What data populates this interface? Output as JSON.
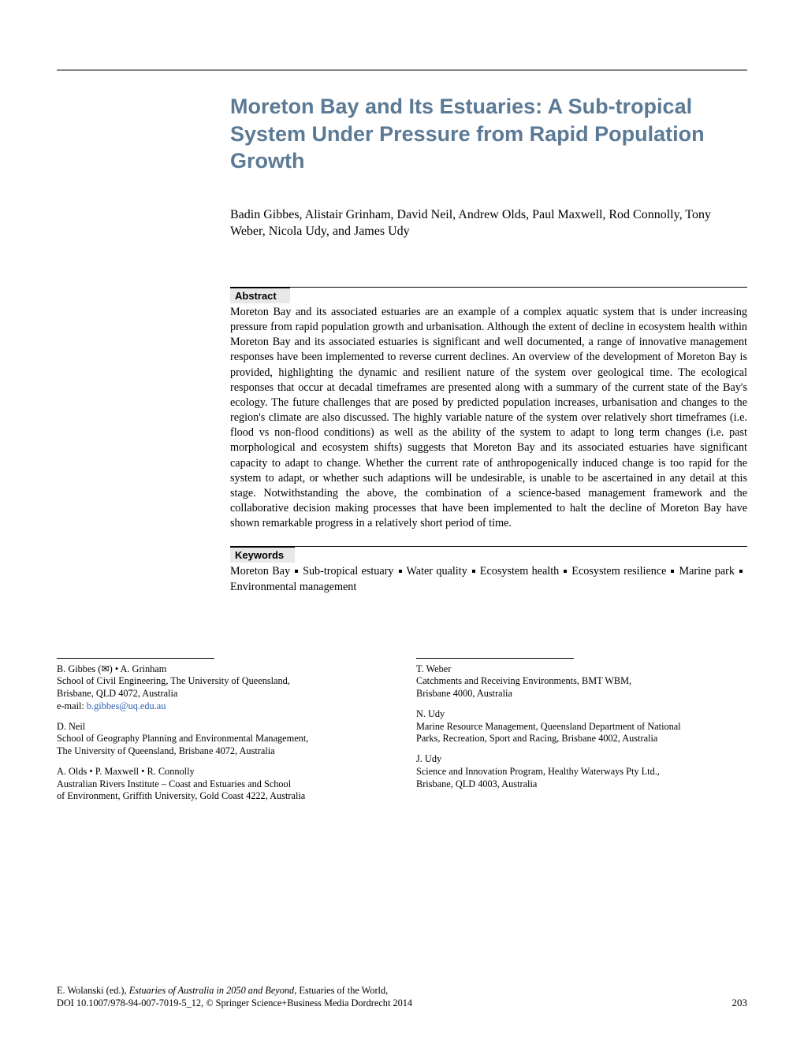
{
  "title": "Moreton Bay and Its Estuaries: A Sub-tropical System Under Pressure from Rapid Population Growth",
  "title_color": "#5b7a95",
  "authors_line": "Badin Gibbes, Alistair Grinham, David Neil, Andrew Olds, Paul Maxwell, Rod Connolly, Tony Weber, Nicola Udy, and James Udy",
  "abstract_label": "Abstract",
  "abstract_body": "Moreton Bay and its associated estuaries are an example of a complex aquatic system that is under increasing pressure from rapid population growth and urbanisation. Although the extent of decline in ecosystem health within Moreton Bay and its associated estuaries is significant and well documented, a range of innovative management responses have been implemented to reverse current declines. An overview of the development of Moreton Bay is provided, highlighting the dynamic and resilient nature of the system over geological time. The ecological responses that occur at decadal timeframes are presented along with a summary of the current state of the Bay's ecology. The future challenges that are posed by predicted population increases, urbanisation and changes to the region's climate are also discussed. The highly variable nature of the system over relatively short timeframes (i.e. flood vs non-flood conditions) as well as the ability of the system to adapt to long term changes (i.e. past morphological and ecosystem shifts) suggests that Moreton Bay and its associated estuaries have significant capacity to adapt to change. Whether the current rate of anthropogenically induced change is too rapid for the system to adapt, or whether such adaptions will be undesirable, is unable to be ascertained in any detail at this stage. Notwithstanding the above, the combination of a science-based management framework and the collaborative decision making processes that have been implemented to halt the decline of Moreton Bay have shown remarkable progress in a relatively short period of time.",
  "keywords_label": "Keywords",
  "keywords": [
    "Moreton Bay",
    "Sub-tropical estuary",
    "Water quality",
    "Ecosystem health",
    "Ecosystem resilience",
    "Marine park",
    "Environmental management"
  ],
  "affiliations": {
    "left": [
      {
        "names_html": "B. Gibbes (✉) • A. Grinham",
        "lines": [
          "School of Civil Engineering, The University of Queensland,",
          "Brisbane, QLD 4072, Australia"
        ],
        "email_label": "e-mail: ",
        "email": "b.gibbes@uq.edu.au"
      },
      {
        "names_html": "D. Neil",
        "lines": [
          "School of Geography Planning and Environmental Management,",
          "The University of Queensland, Brisbane 4072, Australia"
        ]
      },
      {
        "names_html": "A. Olds • P. Maxwell • R. Connolly",
        "lines": [
          "Australian Rivers Institute – Coast and Estuaries and School",
          "of Environment, Griffith University, Gold Coast 4222, Australia"
        ]
      }
    ],
    "right": [
      {
        "names_html": "T. Weber",
        "lines": [
          "Catchments and Receiving Environments, BMT WBM,",
          "Brisbane 4000, Australia"
        ]
      },
      {
        "names_html": "N. Udy",
        "lines": [
          "Marine Resource Management, Queensland Department of National",
          "Parks, Recreation, Sport and Racing, Brisbane 4002, Australia"
        ]
      },
      {
        "names_html": "J. Udy",
        "lines": [
          "Science and Innovation Program, Healthy Waterways Pty Ltd.,",
          "Brisbane, QLD 4003, Australia"
        ]
      }
    ]
  },
  "footer": {
    "editor": "E. Wolanski (ed.), ",
    "book_title": "Estuaries of Australia in 2050 and Beyond",
    "series": ", Estuaries of the World,",
    "doi_line": "DOI 10.1007/978-94-007-7019-5_12, © Springer Science+Business Media Dordrecht 2014",
    "page_number": "203"
  }
}
